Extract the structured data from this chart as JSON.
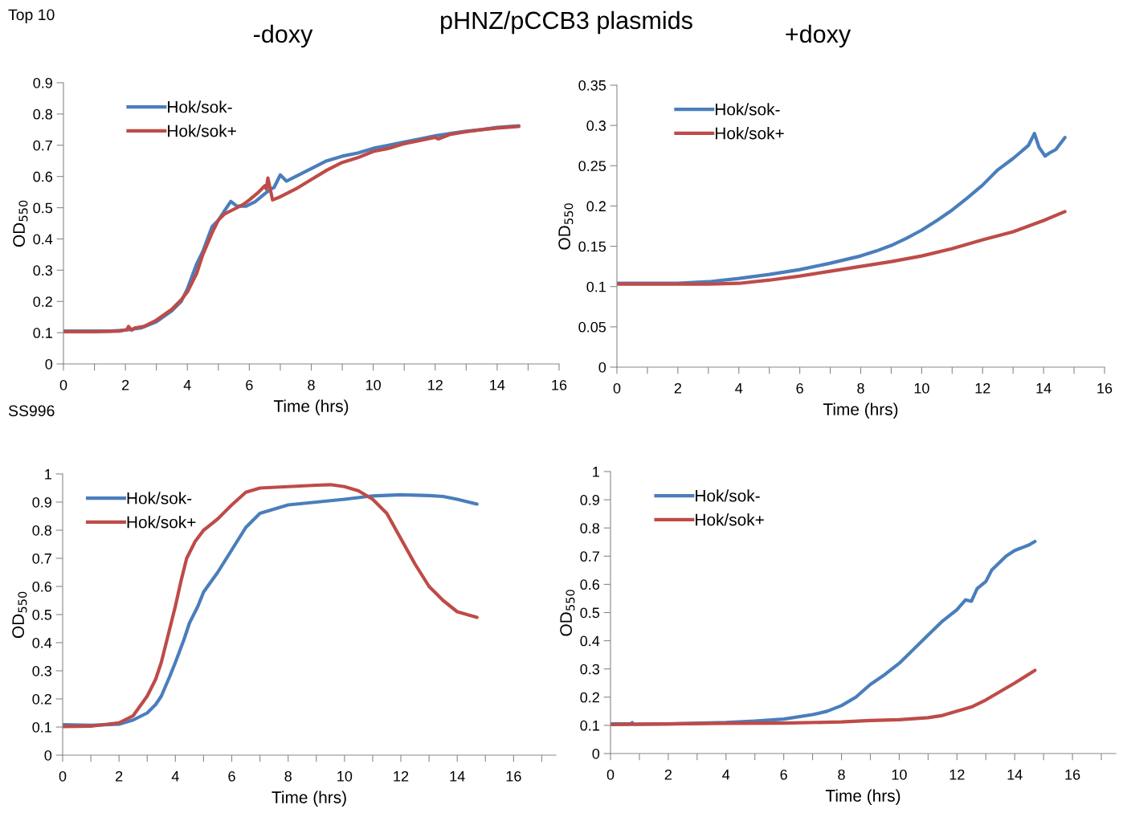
{
  "chart_data": [
    {
      "type": "line",
      "title": "-doxy",
      "xlabel": "Time (hrs)",
      "ylabel": "OD$_{550}$",
      "annotations": [
        "Top 10",
        "pHNZ/pCCB3 plasmids"
      ],
      "legend": "top left",
      "grid": false,
      "marker": "none",
      "line_style": "solid",
      "xlim": [
        0,
        16
      ],
      "xticks": [
        0,
        {
          "value": 1,
          "label": null
        },
        2,
        {
          "value": 3,
          "label": null
        },
        4,
        {
          "value": 5,
          "label": null
        },
        6,
        {
          "value": 7,
          "label": null
        },
        8,
        {
          "value": 9,
          "label": null
        },
        10,
        {
          "value": 11,
          "label": null
        },
        12,
        {
          "value": 13,
          "label": null
        },
        14,
        {
          "value": 15,
          "label": null
        },
        16
      ],
      "ylim": [
        0,
        0.9
      ],
      "yticks": [
        0,
        0.1,
        0.2,
        0.3,
        0.4,
        0.5,
        0.6,
        0.7,
        0.8,
        0.9
      ],
      "series": [
        {
          "name": "Hok/sok-",
          "color": "#4a7ebb",
          "x": [
            0,
            1,
            1.5,
            2,
            2.5,
            3,
            3.5,
            3.8,
            4,
            4.3,
            4.5,
            4.8,
            5,
            5.2,
            5.4,
            5.6,
            5.9,
            6.2,
            6.5,
            6.7,
            6.8,
            7,
            7.2,
            7.5,
            8,
            8.5,
            9,
            9.5,
            10,
            10.5,
            11,
            11.5,
            12,
            12.5,
            13,
            13.5,
            14,
            14.7
          ],
          "values": [
            0.105,
            0.105,
            0.105,
            0.108,
            0.115,
            0.135,
            0.17,
            0.2,
            0.24,
            0.32,
            0.36,
            0.44,
            0.46,
            0.49,
            0.52,
            0.505,
            0.505,
            0.52,
            0.545,
            0.56,
            0.565,
            0.605,
            0.585,
            0.6,
            0.625,
            0.65,
            0.665,
            0.675,
            0.69,
            0.7,
            0.71,
            0.72,
            0.73,
            0.738,
            0.745,
            0.75,
            0.757,
            0.762
          ]
        },
        {
          "name": "Hok/sok+",
          "color": "#be4b48",
          "x": [
            0,
            1,
            1.8,
            2.05,
            2.1,
            2.2,
            2.3,
            2.6,
            3,
            3.5,
            3.8,
            4,
            4.3,
            4.5,
            4.8,
            5,
            5.2,
            5.5,
            5.8,
            6,
            6.3,
            6.5,
            6.55,
            6.6,
            6.75,
            7,
            7.5,
            8,
            8.5,
            9,
            9.5,
            10,
            10.5,
            11,
            11.5,
            12,
            12.1,
            12.5,
            13,
            13.5,
            14,
            14.7
          ],
          "values": [
            0.103,
            0.103,
            0.105,
            0.11,
            0.12,
            0.108,
            0.115,
            0.12,
            0.14,
            0.175,
            0.205,
            0.23,
            0.29,
            0.35,
            0.42,
            0.46,
            0.48,
            0.495,
            0.51,
            0.525,
            0.55,
            0.57,
            0.56,
            0.595,
            0.525,
            0.535,
            0.56,
            0.59,
            0.62,
            0.645,
            0.66,
            0.68,
            0.69,
            0.705,
            0.715,
            0.725,
            0.72,
            0.735,
            0.743,
            0.75,
            0.755,
            0.76
          ]
        }
      ]
    },
    {
      "type": "line",
      "title": "+doxy",
      "xlabel": "Time (hrs)",
      "ylabel": "OD$_{550}$",
      "legend": "top left",
      "grid": false,
      "marker": "none",
      "line_style": "solid",
      "xlim": [
        0,
        16
      ],
      "xticks": [
        0,
        {
          "value": 1,
          "label": null
        },
        2,
        {
          "value": 3,
          "label": null
        },
        4,
        {
          "value": 5,
          "label": null
        },
        6,
        {
          "value": 7,
          "label": null
        },
        8,
        {
          "value": 9,
          "label": null
        },
        10,
        {
          "value": 11,
          "label": null
        },
        12,
        {
          "value": 13,
          "label": null
        },
        14,
        {
          "value": 15,
          "label": null
        },
        16
      ],
      "ylim": [
        0,
        0.35
      ],
      "yticks": [
        0,
        0.05,
        0.1,
        0.15,
        0.2,
        0.25,
        0.3,
        0.35
      ],
      "series": [
        {
          "name": "Hok/sok-",
          "color": "#4a7ebb",
          "x": [
            0,
            1,
            2,
            3,
            4,
            5,
            6,
            7,
            8,
            8.5,
            9,
            9.5,
            10,
            10.5,
            11,
            11.5,
            12,
            12.5,
            13,
            13.5,
            13.7,
            13.85,
            14.05,
            14.2,
            14.4,
            14.7
          ],
          "values": [
            0.104,
            0.104,
            0.104,
            0.106,
            0.11,
            0.115,
            0.121,
            0.129,
            0.138,
            0.144,
            0.151,
            0.16,
            0.17,
            0.182,
            0.195,
            0.21,
            0.226,
            0.245,
            0.259,
            0.275,
            0.29,
            0.273,
            0.262,
            0.266,
            0.27,
            0.285
          ]
        },
        {
          "name": "Hok/sok+",
          "color": "#be4b48",
          "x": [
            0,
            2,
            3,
            4,
            5,
            6,
            7,
            8,
            9,
            10,
            11,
            12,
            13,
            13.5,
            14,
            14.7
          ],
          "values": [
            0.103,
            0.103,
            0.103,
            0.104,
            0.108,
            0.113,
            0.119,
            0.125,
            0.131,
            0.138,
            0.147,
            0.158,
            0.168,
            0.175,
            0.182,
            0.193
          ]
        }
      ]
    },
    {
      "type": "line",
      "xlabel": "Time (hrs)",
      "ylabel": "OD$_{550}$",
      "annotations": [
        "SS996"
      ],
      "legend": "top left",
      "grid": false,
      "marker": "none",
      "line_style": "solid",
      "xlim": [
        0,
        17.5
      ],
      "xticks": [
        0,
        {
          "value": 1,
          "label": null
        },
        2,
        {
          "value": 3,
          "label": null
        },
        4,
        {
          "value": 5,
          "label": null
        },
        6,
        {
          "value": 7,
          "label": null
        },
        8,
        {
          "value": 9,
          "label": null
        },
        10,
        {
          "value": 11,
          "label": null
        },
        12,
        {
          "value": 13,
          "label": null
        },
        14,
        {
          "value": 15,
          "label": null
        },
        16,
        {
          "value": 17,
          "label": null
        }
      ],
      "ylim": [
        0,
        1
      ],
      "yticks": [
        0,
        0.1,
        0.2,
        0.3,
        0.4,
        0.5,
        0.6,
        0.7,
        0.8,
        0.9,
        1
      ],
      "series": [
        {
          "name": "Hok/sok-",
          "color": "#4a7ebb",
          "x": [
            0,
            1,
            2,
            2.5,
            3,
            3.3,
            3.5,
            3.8,
            4,
            4.3,
            4.5,
            4.8,
            5,
            5.5,
            6,
            6.5,
            7,
            7.5,
            8,
            9,
            10,
            11,
            12,
            13,
            13.5,
            14,
            14.7
          ],
          "values": [
            0.108,
            0.106,
            0.11,
            0.125,
            0.15,
            0.18,
            0.21,
            0.28,
            0.33,
            0.41,
            0.47,
            0.53,
            0.58,
            0.65,
            0.73,
            0.81,
            0.86,
            0.875,
            0.89,
            0.9,
            0.91,
            0.922,
            0.926,
            0.923,
            0.92,
            0.91,
            0.893
          ]
        },
        {
          "name": "Hok/sok+",
          "color": "#be4b48",
          "x": [
            0,
            1,
            2,
            2.5,
            3,
            3.3,
            3.5,
            3.8,
            4,
            4.2,
            4.4,
            4.7,
            5,
            5.5,
            6,
            6.5,
            7,
            8,
            9,
            9.5,
            10,
            10.5,
            11,
            11.5,
            12,
            12.5,
            13,
            13.5,
            14,
            14.7
          ],
          "values": [
            0.102,
            0.103,
            0.115,
            0.14,
            0.21,
            0.27,
            0.33,
            0.45,
            0.53,
            0.62,
            0.7,
            0.76,
            0.8,
            0.84,
            0.89,
            0.935,
            0.95,
            0.955,
            0.96,
            0.962,
            0.955,
            0.94,
            0.91,
            0.86,
            0.77,
            0.68,
            0.6,
            0.55,
            0.51,
            0.49
          ]
        }
      ]
    },
    {
      "type": "line",
      "xlabel": "Time (hrs)",
      "ylabel": "OD$_{550}$",
      "legend": "top left",
      "grid": false,
      "marker": "none",
      "line_style": "solid",
      "xlim": [
        0,
        17.5
      ],
      "xticks": [
        0,
        {
          "value": 1,
          "label": null
        },
        2,
        {
          "value": 3,
          "label": null
        },
        4,
        {
          "value": 5,
          "label": null
        },
        6,
        {
          "value": 7,
          "label": null
        },
        8,
        {
          "value": 9,
          "label": null
        },
        10,
        {
          "value": 11,
          "label": null
        },
        12,
        {
          "value": 13,
          "label": null
        },
        14,
        {
          "value": 15,
          "label": null
        },
        16,
        {
          "value": 17,
          "label": null
        }
      ],
      "ylim": [
        0,
        1
      ],
      "yticks": [
        0,
        0.1,
        0.2,
        0.3,
        0.4,
        0.5,
        0.6,
        0.7,
        0.8,
        0.9,
        1
      ],
      "series": [
        {
          "name": "Hok/sok-",
          "color": "#4a7ebb",
          "x": [
            0,
            0.7,
            0.75,
            0.8,
            2,
            4,
            5,
            6,
            7,
            7.5,
            8,
            8.5,
            9,
            9.5,
            10,
            10.5,
            11,
            11.5,
            12,
            12.3,
            12.5,
            12.7,
            13,
            13.2,
            13.5,
            13.7,
            14,
            14.5,
            14.7
          ],
          "values": [
            0.105,
            0.105,
            0.11,
            0.104,
            0.105,
            0.11,
            0.115,
            0.122,
            0.138,
            0.15,
            0.17,
            0.2,
            0.245,
            0.28,
            0.32,
            0.37,
            0.42,
            0.47,
            0.51,
            0.545,
            0.54,
            0.585,
            0.61,
            0.65,
            0.68,
            0.7,
            0.72,
            0.74,
            0.752
          ]
        },
        {
          "name": "Hok/sok+",
          "color": "#be4b48",
          "x": [
            0,
            2,
            4,
            6,
            8,
            9,
            10,
            11,
            11.5,
            12,
            12.5,
            13,
            13.5,
            14,
            14.7
          ],
          "values": [
            0.103,
            0.105,
            0.107,
            0.108,
            0.112,
            0.117,
            0.12,
            0.127,
            0.135,
            0.15,
            0.165,
            0.19,
            0.22,
            0.25,
            0.295
          ]
        }
      ]
    }
  ]
}
